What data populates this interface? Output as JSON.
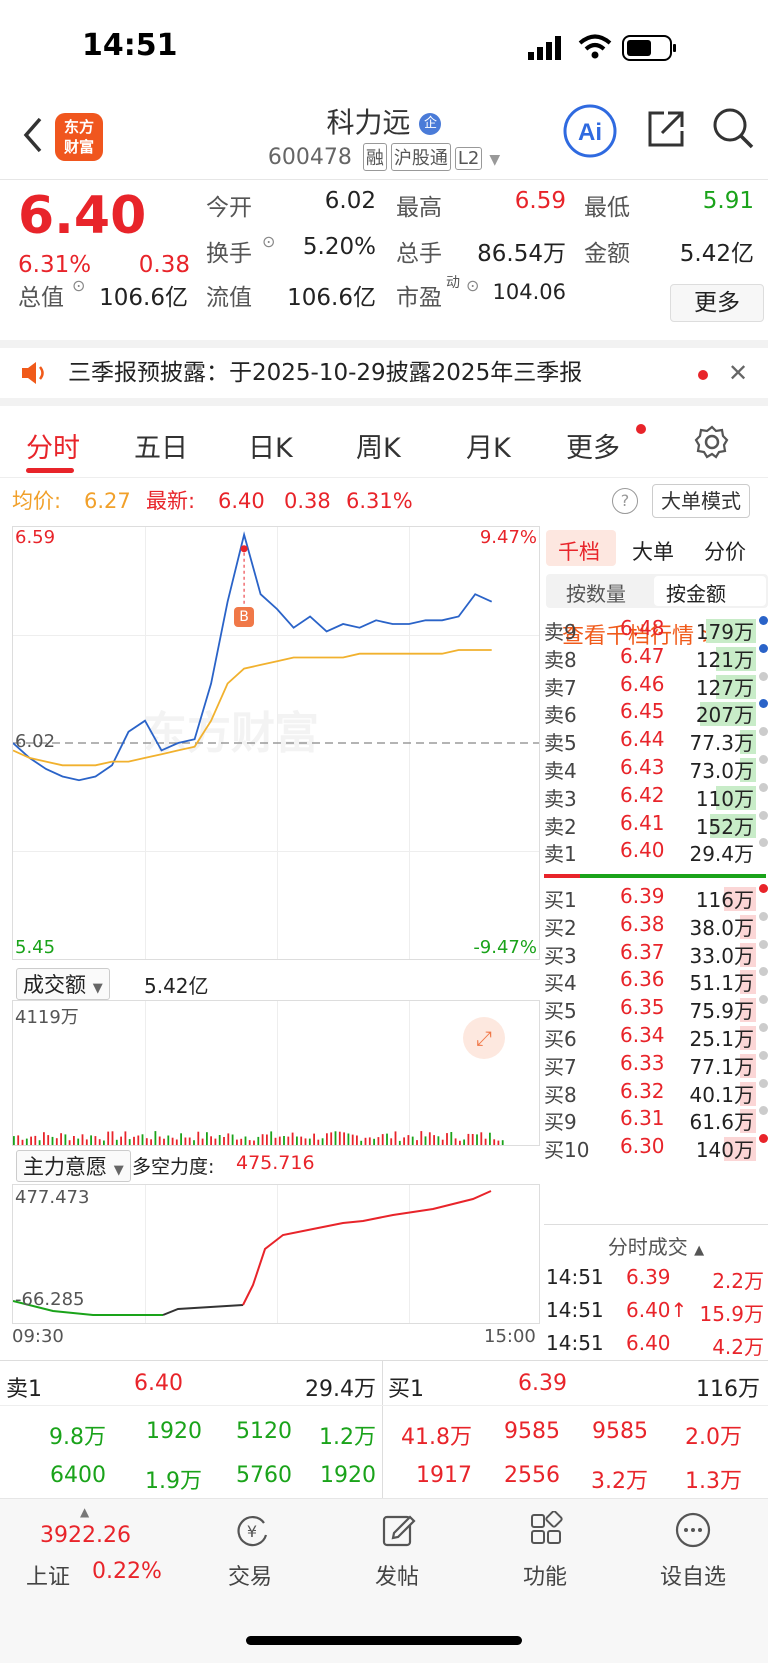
{
  "status": {
    "time": "14:51"
  },
  "header": {
    "logo": "东方\n财富",
    "title": "科力远",
    "title_badge": "企",
    "code": "600478",
    "tags": [
      "融",
      "沪股通",
      "L2"
    ]
  },
  "quote": {
    "price": "6.40",
    "pct": "6.31%",
    "chg": "0.38",
    "open_label": "今开",
    "open": "6.02",
    "high_label": "最高",
    "high": "6.59",
    "low_label": "最低",
    "low": "5.91",
    "turnover_label": "换手",
    "turnover": "5.20%",
    "vol_label": "总手",
    "vol": "86.54万",
    "amount_label": "金额",
    "amount": "5.42亿",
    "mcap_label": "总值",
    "mcap": "106.6亿",
    "float_label": "流值",
    "float": "106.6亿",
    "pe_label": "市盈",
    "pe_sup": "动",
    "pe": "104.06",
    "more": "更多"
  },
  "notice": {
    "text": "三季报预披露：于2025-10-29披露2025年三季报"
  },
  "tabs": [
    "分时",
    "五日",
    "日K",
    "周K",
    "月K",
    "更多"
  ],
  "avgrow": {
    "avg_label": "均价:",
    "avg": "6.27",
    "last_label": "最新:",
    "last": "6.40",
    "chg": "0.38",
    "pct": "6.31%",
    "mode": "大单模式"
  },
  "chart": {
    "ymax": "6.59",
    "ymin": "5.45",
    "ref": "6.02",
    "pmax": "9.47%",
    "pmin": "-9.47%",
    "marker": "B",
    "watermark": "东方财富"
  },
  "chart_data": {
    "type": "line",
    "x_start": "09:30",
    "x_end": "15:00",
    "ylim": [
      5.45,
      6.59
    ],
    "ref": 6.02,
    "series": [
      {
        "values": [
          6.02,
          5.98,
          5.95,
          5.93,
          5.92,
          5.93,
          5.96,
          6.05,
          6.08,
          6.0,
          6.02,
          6.03,
          6.18,
          6.4,
          6.58,
          6.42,
          6.38,
          6.33,
          6.36,
          6.32,
          6.34,
          6.33,
          6.35,
          6.34,
          6.34,
          6.35,
          6.35,
          6.36,
          6.42,
          6.4
        ]
      },
      {
        "values": [
          6.0,
          5.98,
          5.97,
          5.96,
          5.96,
          5.96,
          5.97,
          5.97,
          5.98,
          5.99,
          6.0,
          6.01,
          6.08,
          6.18,
          6.22,
          6.23,
          6.24,
          6.25,
          6.25,
          6.25,
          6.25,
          6.26,
          6.26,
          6.26,
          6.26,
          6.26,
          6.26,
          6.27,
          6.27,
          6.27
        ]
      }
    ]
  },
  "volume": {
    "label": "成交额",
    "value": "5.42亿",
    "max": "4119万"
  },
  "main_force": {
    "label": "主力意愿",
    "power_label": "多空力度:",
    "power": "475.716",
    "max": "477.473",
    "min": "-66.285",
    "t0": "09:30",
    "t1": "15:00"
  },
  "order": {
    "tabs": [
      "千档",
      "大单",
      "分价"
    ],
    "subtabs": [
      "按数量",
      "按金额"
    ],
    "link": "查看千档行情 >",
    "sells": [
      [
        "卖9",
        "6.48",
        "179万"
      ],
      [
        "卖8",
        "6.47",
        "121万"
      ],
      [
        "卖7",
        "6.46",
        "127万"
      ],
      [
        "卖6",
        "6.45",
        "207万"
      ],
      [
        "卖5",
        "6.44",
        "77.3万"
      ],
      [
        "卖4",
        "6.43",
        "73.0万"
      ],
      [
        "卖3",
        "6.42",
        "110万"
      ],
      [
        "卖2",
        "6.41",
        "152万"
      ],
      [
        "卖1",
        "6.40",
        "29.4万"
      ]
    ],
    "buys": [
      [
        "买1",
        "6.39",
        "116万"
      ],
      [
        "买2",
        "6.38",
        "38.0万"
      ],
      [
        "买3",
        "6.37",
        "33.0万"
      ],
      [
        "买4",
        "6.36",
        "51.1万"
      ],
      [
        "买5",
        "6.35",
        "75.9万"
      ],
      [
        "买6",
        "6.34",
        "25.1万"
      ],
      [
        "买7",
        "6.33",
        "77.1万"
      ],
      [
        "买8",
        "6.32",
        "40.1万"
      ],
      [
        "买9",
        "6.31",
        "61.6万"
      ],
      [
        "买10",
        "6.30",
        "140万"
      ]
    ]
  },
  "trades": {
    "title": "分时成交",
    "rows": [
      [
        "14:51",
        "6.39",
        "2.2万"
      ],
      [
        "14:51",
        "6.40↑",
        "15.9万"
      ],
      [
        "14:51",
        "6.40",
        "4.2万"
      ]
    ]
  },
  "bottom": {
    "sell_label": "卖1",
    "sell_price": "6.40",
    "sell_vol": "29.4万",
    "buy_label": "买1",
    "buy_price": "6.39",
    "buy_vol": "116万",
    "sell_rows": [
      [
        "9.8万",
        "1920",
        "5120",
        "1.2万"
      ],
      [
        "6400",
        "1.9万",
        "5760",
        "1920"
      ]
    ],
    "buy_rows": [
      [
        "41.8万",
        "9585",
        "9585",
        "2.0万"
      ],
      [
        "1917",
        "2556",
        "3.2万",
        "1.3万"
      ]
    ]
  },
  "tabbar": {
    "index_value": "3922.26",
    "index_name": "上证",
    "index_pct": "0.22%",
    "items": [
      "交易",
      "发帖",
      "功能",
      "设自选"
    ]
  }
}
